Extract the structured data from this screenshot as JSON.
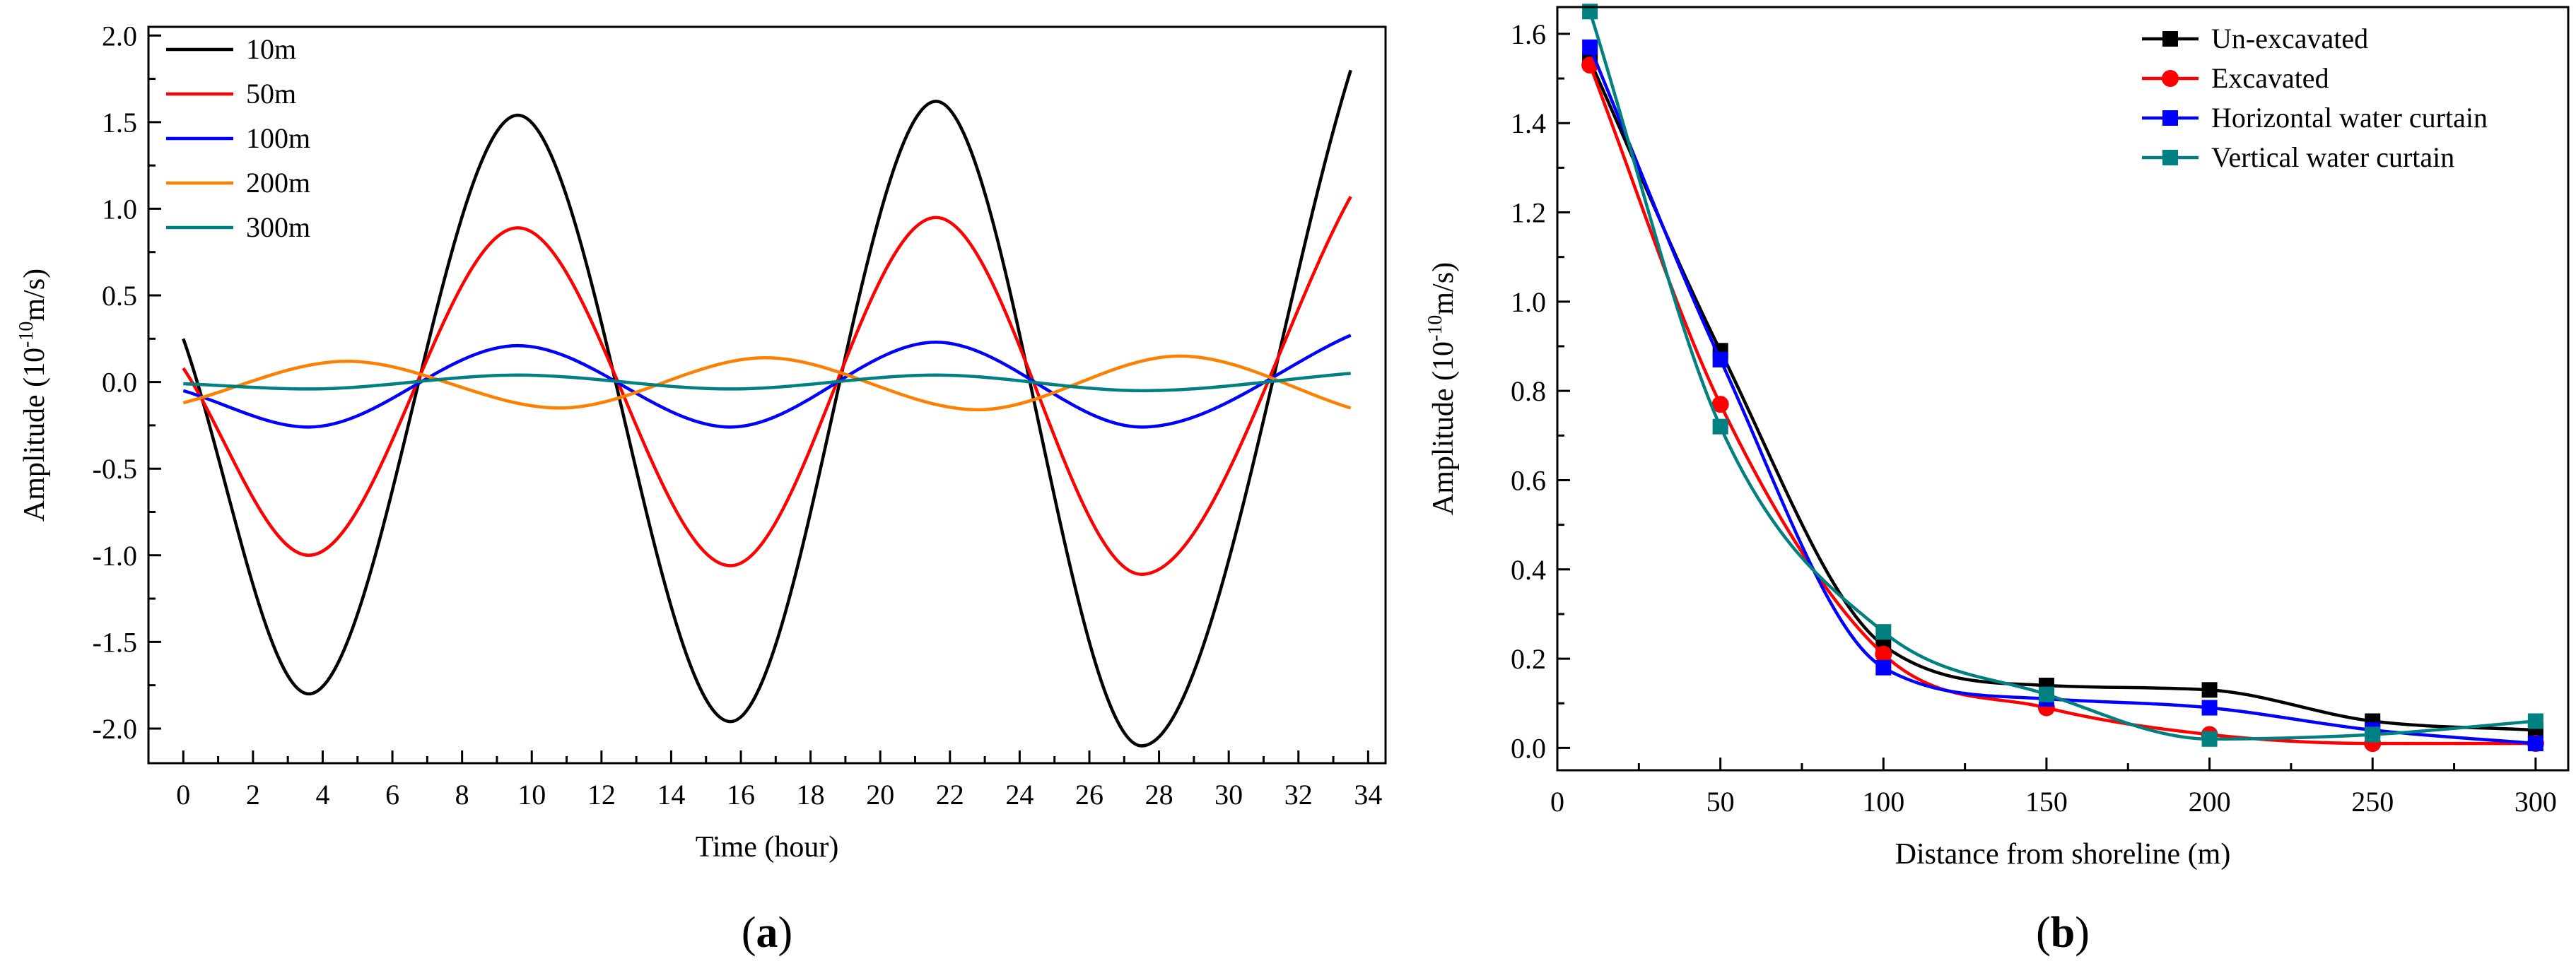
{
  "chart_data": [
    {
      "type": "line",
      "panel_label": "a",
      "xlabel": "Time (hour)",
      "ylabel_prefix": "Amplitude (10",
      "ylabel_exp": "-10",
      "ylabel_suffix": "m/s)",
      "xlim": [
        -1,
        34.5
      ],
      "ylim": [
        -2.2,
        2.05
      ],
      "xticks": [
        0,
        2,
        4,
        6,
        8,
        10,
        12,
        14,
        16,
        18,
        20,
        22,
        24,
        26,
        28,
        30,
        32,
        34
      ],
      "yticks": [
        -2.0,
        -1.5,
        -1.0,
        -0.5,
        0.0,
        0.5,
        1.0,
        1.5,
        2.0
      ],
      "legend_position": "top-left",
      "series": [
        {
          "name": "10m",
          "color": "#000000",
          "x": [
            0,
            3.6,
            9.6,
            15.7,
            21.6,
            27.5,
            33.5
          ],
          "y": [
            0.25,
            -1.8,
            1.54,
            -1.96,
            1.62,
            -2.1,
            1.8
          ]
        },
        {
          "name": "50m",
          "color": "#ff0000",
          "x": [
            0,
            3.6,
            9.6,
            15.7,
            21.6,
            27.5,
            33.5
          ],
          "y": [
            0.08,
            -1.0,
            0.89,
            -1.06,
            0.95,
            -1.11,
            1.07
          ]
        },
        {
          "name": "100m",
          "color": "#0000ff",
          "x": [
            0,
            3.6,
            9.6,
            15.7,
            21.6,
            27.5,
            33.5
          ],
          "y": [
            -0.05,
            -0.26,
            0.21,
            -0.26,
            0.23,
            -0.26,
            0.27
          ]
        },
        {
          "name": "200m",
          "color": "#ff8000",
          "x": [
            0,
            4.7,
            10.8,
            16.7,
            22.8,
            28.6,
            33.5
          ],
          "y": [
            -0.12,
            0.12,
            -0.15,
            0.14,
            -0.16,
            0.15,
            -0.15
          ]
        },
        {
          "name": "300m",
          "color": "#008080",
          "x": [
            0,
            3.6,
            9.6,
            15.7,
            21.6,
            27.5,
            33.5
          ],
          "y": [
            -0.01,
            -0.04,
            0.04,
            -0.04,
            0.04,
            -0.05,
            0.05
          ]
        }
      ]
    },
    {
      "type": "line",
      "panel_label": "b",
      "xlabel": "Distance from shoreline (m)",
      "ylabel_prefix": "Amplitude (10",
      "ylabel_exp": "-10",
      "ylabel_suffix": "m/s)",
      "xlim": [
        0,
        310
      ],
      "ylim": [
        -0.05,
        1.66
      ],
      "xticks": [
        0,
        50,
        100,
        150,
        200,
        250,
        300
      ],
      "yticks": [
        0.0,
        0.2,
        0.4,
        0.6,
        0.8,
        1.0,
        1.2,
        1.4,
        1.6
      ],
      "ytick_labels": [
        "0.0",
        "0.2",
        "0.4",
        "0.6",
        "0.8",
        "1.0",
        "1.2",
        "1.4",
        "1.6"
      ],
      "legend_position": "top-right",
      "series": [
        {
          "name": "Un-excavated",
          "color": "#000000",
          "marker": "square",
          "x": [
            10,
            50,
            100,
            150,
            200,
            250,
            300
          ],
          "y": [
            1.54,
            0.89,
            0.23,
            0.14,
            0.13,
            0.06,
            0.04
          ]
        },
        {
          "name": "Excavated",
          "color": "#ff0000",
          "marker": "circle",
          "x": [
            10,
            50,
            100,
            150,
            200,
            250,
            300
          ],
          "y": [
            1.53,
            0.77,
            0.21,
            0.09,
            0.03,
            0.01,
            0.01
          ]
        },
        {
          "name": "Horizontal water curtain",
          "color": "#0000ff",
          "marker": "square",
          "x": [
            10,
            50,
            100,
            150,
            200,
            250,
            300
          ],
          "y": [
            1.57,
            0.87,
            0.18,
            0.11,
            0.09,
            0.04,
            0.01
          ]
        },
        {
          "name": "Vertical water curtain",
          "color": "#008080",
          "marker": "square",
          "x": [
            10,
            50,
            100,
            150,
            200,
            250,
            300
          ],
          "y": [
            1.65,
            0.72,
            0.26,
            0.12,
            0.02,
            0.03,
            0.06
          ]
        }
      ]
    }
  ]
}
